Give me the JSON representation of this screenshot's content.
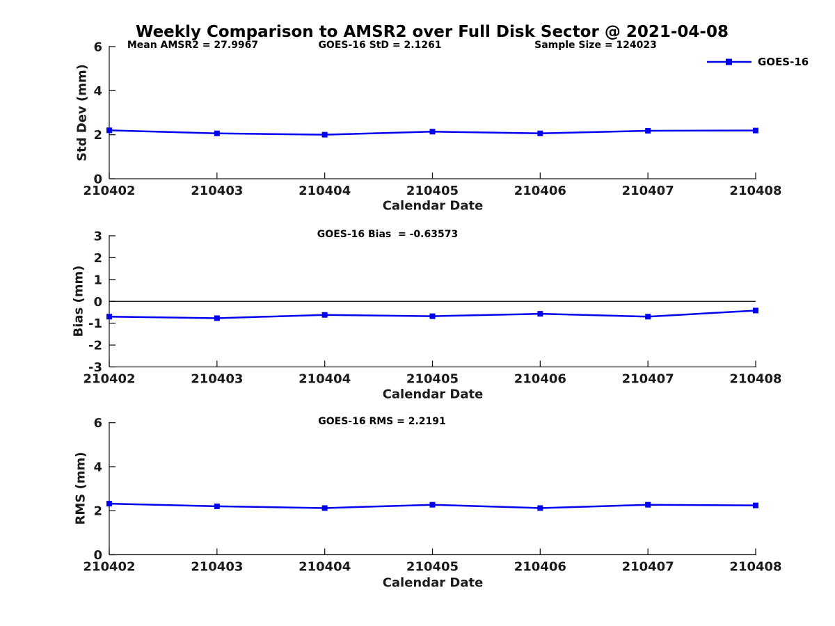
{
  "figure": {
    "title": "Weekly Comparison to AMSR2 over Full Disk Sector @ 2021-04-08",
    "legend": {
      "label": "GOES-16",
      "line_color": "#0000EE",
      "marker": "square"
    }
  },
  "chart_data": [
    {
      "type": "line",
      "annotations": [
        "Mean AMSR2 = 27.9967",
        "GOES-16 StD = 2.1261",
        "Sample Size = 124023"
      ],
      "categories": [
        "210402",
        "210403",
        "210404",
        "210405",
        "210406",
        "210407",
        "210408"
      ],
      "series": [
        {
          "name": "GOES-16",
          "color": "#0000EE",
          "marker": "square",
          "values": [
            2.2,
            2.06,
            2.0,
            2.14,
            2.06,
            2.18,
            2.19
          ]
        }
      ],
      "xlabel": "Calendar Date",
      "ylabel": "Std Dev (mm)",
      "ylim": [
        0,
        6
      ],
      "yticks": [
        0,
        2,
        4,
        6
      ],
      "zero_line": false,
      "grid": false,
      "legend_position": "top-right"
    },
    {
      "type": "line",
      "annotations": [
        "GOES-16 Bias  = -0.63573"
      ],
      "categories": [
        "210402",
        "210403",
        "210404",
        "210405",
        "210406",
        "210407",
        "210408"
      ],
      "series": [
        {
          "name": "GOES-16",
          "color": "#0000EE",
          "marker": "square",
          "values": [
            -0.7,
            -0.77,
            -0.62,
            -0.68,
            -0.57,
            -0.7,
            -0.42
          ]
        }
      ],
      "xlabel": "Calendar Date",
      "ylabel": "Bias (mm)",
      "ylim": [
        -3,
        3
      ],
      "yticks": [
        -3,
        -2,
        -1,
        0,
        1,
        2,
        3
      ],
      "zero_line": true,
      "grid": false,
      "legend_position": "none"
    },
    {
      "type": "line",
      "annotations": [
        "GOES-16 RMS = 2.2191"
      ],
      "categories": [
        "210402",
        "210403",
        "210404",
        "210405",
        "210406",
        "210407",
        "210408"
      ],
      "series": [
        {
          "name": "GOES-16",
          "color": "#0000EE",
          "marker": "square",
          "values": [
            2.32,
            2.2,
            2.12,
            2.27,
            2.12,
            2.27,
            2.24
          ]
        }
      ],
      "xlabel": "Calendar Date",
      "ylabel": "RMS (mm)",
      "ylim": [
        0,
        6
      ],
      "yticks": [
        0,
        2,
        4,
        6
      ],
      "zero_line": false,
      "grid": false,
      "legend_position": "none"
    }
  ]
}
